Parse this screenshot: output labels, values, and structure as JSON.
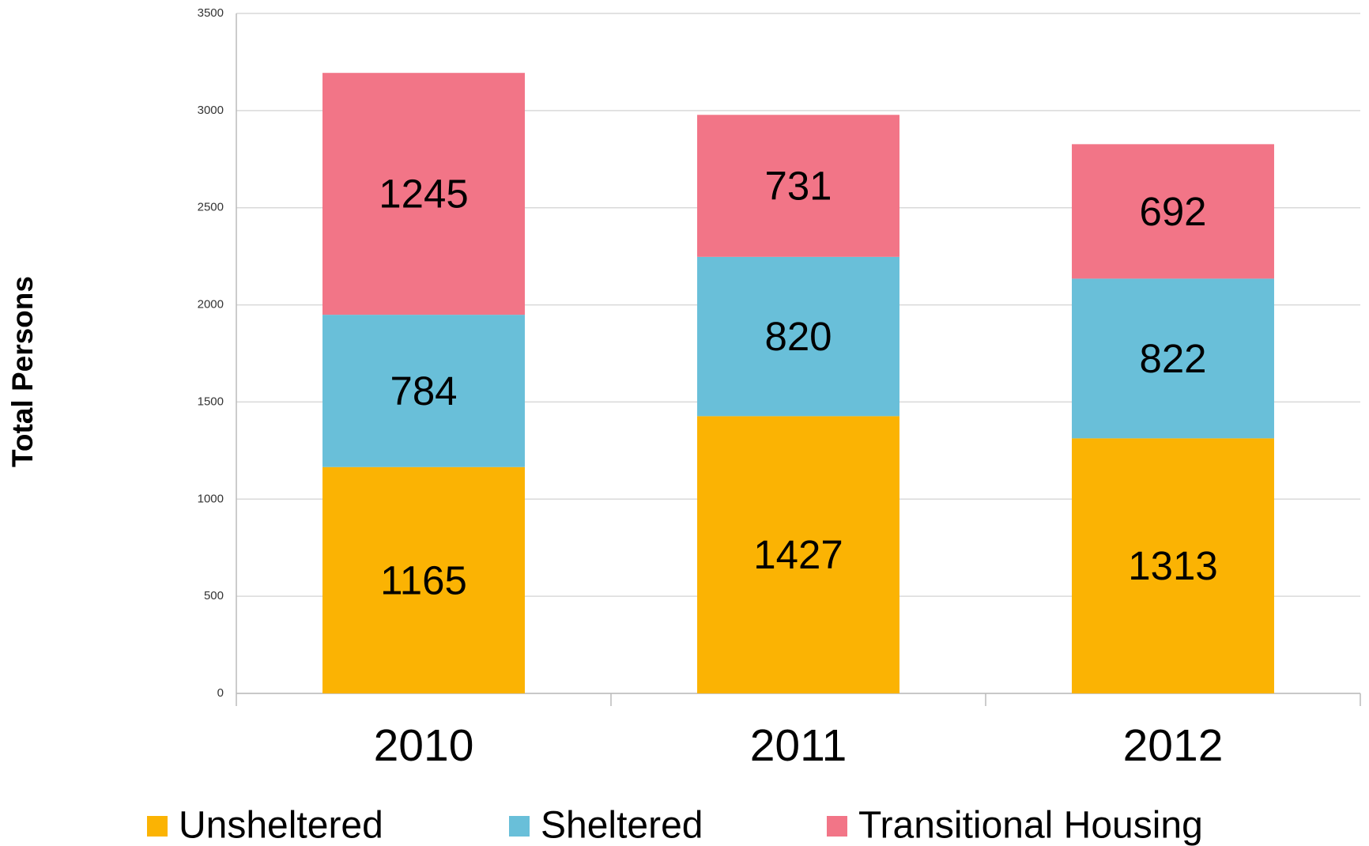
{
  "chart_data": {
    "type": "stacked_bar",
    "y_label": "Total Persons",
    "categories": [
      "2010",
      "2011",
      "2012"
    ],
    "series": [
      {
        "name": "Unsheltered",
        "color": "#fbb303",
        "values": [
          1165,
          1427,
          1313
        ]
      },
      {
        "name": "Sheltered",
        "color": "#69bfd9",
        "values": [
          784,
          820,
          822
        ]
      },
      {
        "name": "Transitional Housing",
        "color": "#f27587",
        "values": [
          1245,
          731,
          692
        ]
      }
    ],
    "ylim": [
      0,
      3500
    ],
    "yticks": [
      0,
      500,
      1000,
      1500,
      2000,
      2500,
      3000,
      3500
    ],
    "grid": true,
    "legend": "bottom"
  }
}
